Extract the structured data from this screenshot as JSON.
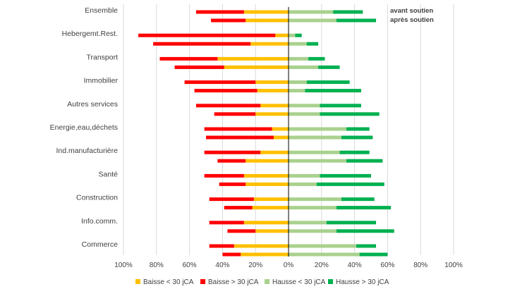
{
  "chart_data": {
    "type": "bar",
    "orientation": "horizontal",
    "stacked": "diverging",
    "categories": [
      "Ensemble",
      "Hebergemt.Rest.",
      "Transport",
      "Immobilier",
      "Autres services",
      "Energie,eau,déchets",
      "Ind.manufacturière",
      "Santé",
      "Construction",
      "Info.comm.",
      "Commerce"
    ],
    "pair_labels": [
      "avant soutien",
      "après soutien"
    ],
    "series": [
      {
        "name": "Baisse < 30 jCA",
        "color": "#FFC000",
        "direction": "negative",
        "before": [
          27,
          8,
          43,
          20,
          17,
          10,
          17,
          27,
          21,
          27,
          33
        ],
        "after": [
          26,
          23,
          39,
          19,
          20,
          9,
          26,
          26,
          22,
          20,
          29
        ]
      },
      {
        "name": "Baisse > 30 jCA",
        "color": "#FF0000",
        "direction": "negative",
        "before": [
          29,
          83,
          35,
          43,
          39,
          41,
          34,
          24,
          27,
          21,
          15
        ],
        "after": [
          21,
          59,
          30,
          38,
          25,
          41,
          17,
          16,
          17,
          17,
          11
        ]
      },
      {
        "name": "Hausse < 30 jCA",
        "color": "#A9D18E",
        "direction": "positive",
        "before": [
          27,
          4,
          12,
          11,
          19,
          35,
          31,
          19,
          32,
          23,
          41
        ],
        "after": [
          29,
          11,
          18,
          10,
          19,
          32,
          35,
          17,
          29,
          29,
          43
        ]
      },
      {
        "name": "Hausse > 30 jCA",
        "color": "#00B050",
        "direction": "positive",
        "before": [
          18,
          4,
          10,
          26,
          25,
          14,
          18,
          31,
          20,
          30,
          12
        ],
        "after": [
          24,
          7,
          13,
          34,
          36,
          19,
          22,
          41,
          33,
          35,
          17
        ]
      }
    ],
    "x_ticks": [
      "100%",
      "80%",
      "60%",
      "40%",
      "20%",
      "0%",
      "20%",
      "40%",
      "60%",
      "80%",
      "100%"
    ],
    "xlim": [
      -100,
      100
    ],
    "grid": true,
    "legend_position": "bottom",
    "title": "",
    "xlabel": "",
    "ylabel": ""
  }
}
